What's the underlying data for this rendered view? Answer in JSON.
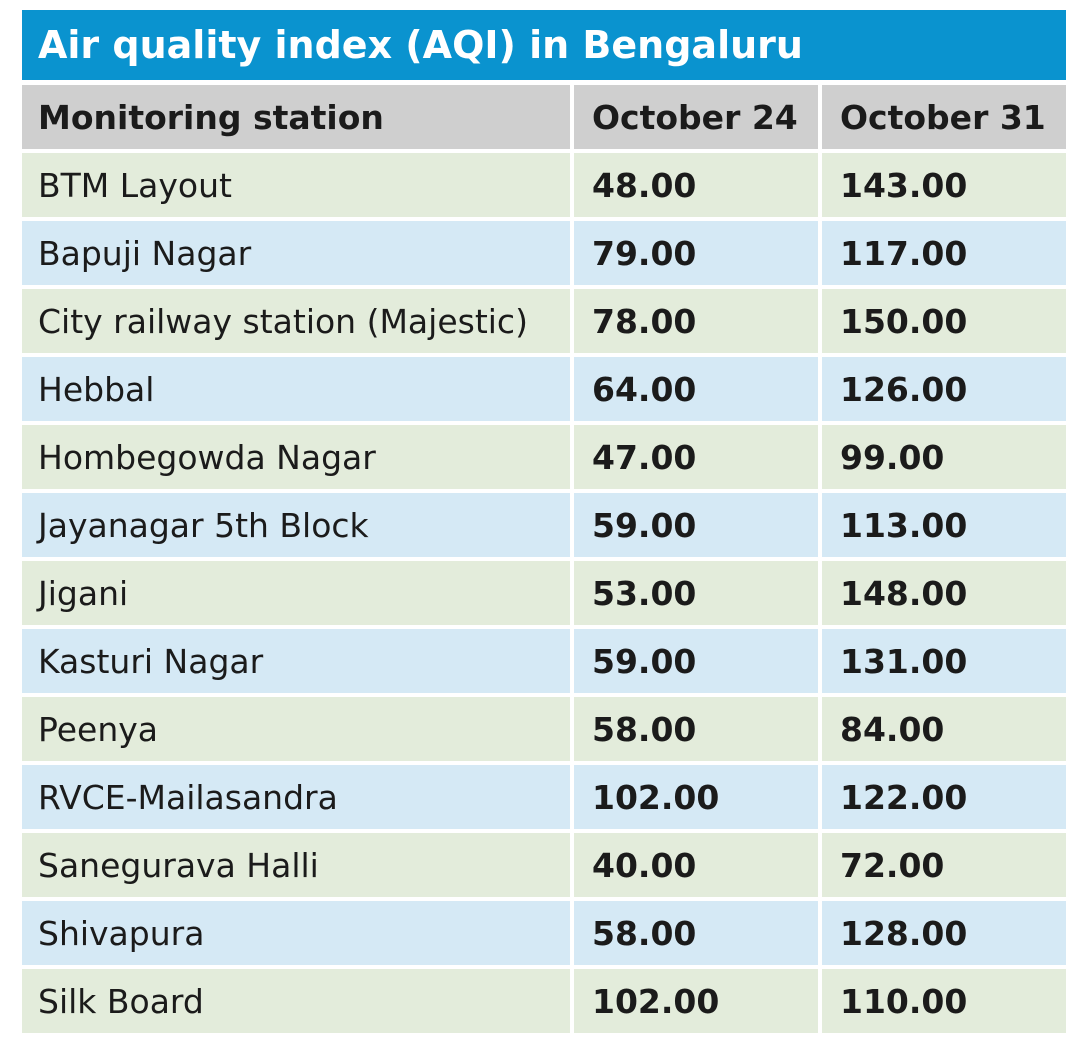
{
  "chart_data": {
    "type": "table",
    "title": "Air quality index (AQI) in Bengaluru",
    "columns": [
      "Monitoring station",
      "October 24",
      "October 31"
    ],
    "rows": [
      {
        "station": "BTM Layout",
        "oct24": "48.00",
        "oct31": "143.00"
      },
      {
        "station": "Bapuji Nagar",
        "oct24": "79.00",
        "oct31": "117.00"
      },
      {
        "station": "City railway station (Majestic)",
        "oct24": "78.00",
        "oct31": "150.00"
      },
      {
        "station": "Hebbal",
        "oct24": "64.00",
        "oct31": "126.00"
      },
      {
        "station": "Hombegowda Nagar",
        "oct24": "47.00",
        "oct31": "99.00"
      },
      {
        "station": "Jayanagar 5th Block",
        "oct24": "59.00",
        "oct31": "113.00"
      },
      {
        "station": "Jigani",
        "oct24": "53.00",
        "oct31": "148.00"
      },
      {
        "station": "Kasturi Nagar",
        "oct24": "59.00",
        "oct31": "131.00"
      },
      {
        "station": "Peenya",
        "oct24": "58.00",
        "oct31": "84.00"
      },
      {
        "station": "RVCE-Mailasandra",
        "oct24": "102.00",
        "oct31": "122.00"
      },
      {
        "station": "Sanegurava Halli",
        "oct24": "40.00",
        "oct31": "72.00"
      },
      {
        "station": "Shivapura",
        "oct24": "58.00",
        "oct31": "128.00"
      },
      {
        "station": "Silk Board",
        "oct24": "102.00",
        "oct31": "110.00"
      }
    ]
  },
  "colors": {
    "title_bar": "#0a93cf",
    "header_row": "#cfcfcf",
    "row_green": "#e3ecdb",
    "row_blue": "#d5e9f5"
  }
}
